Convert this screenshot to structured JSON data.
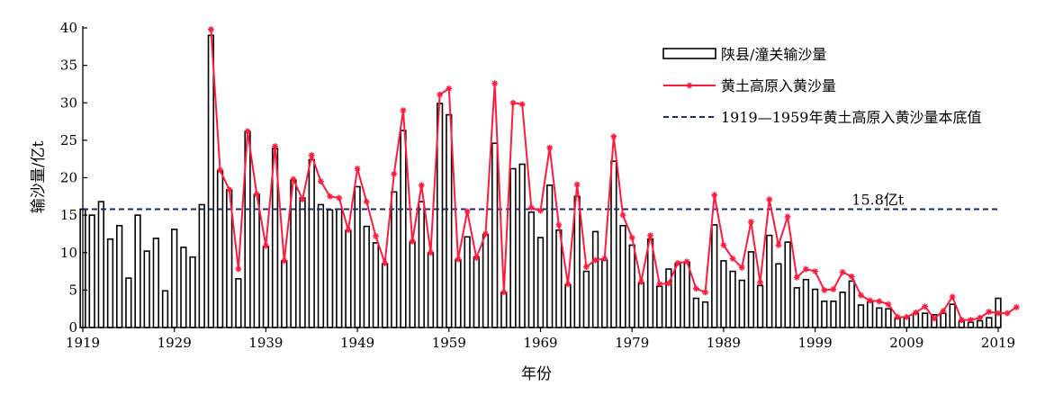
{
  "chart_data": {
    "type": "bar",
    "xlabel": "年份",
    "ylabel": "输沙量/亿t",
    "xlim": [
      1919,
      2019
    ],
    "ylim": [
      0,
      40
    ],
    "xticks": [
      1919,
      1929,
      1939,
      1949,
      1959,
      1969,
      1979,
      1989,
      1999,
      2009,
      2019
    ],
    "yticks": [
      0,
      5,
      10,
      15,
      20,
      25,
      30,
      35,
      40
    ],
    "grid": false,
    "legend_position": "top-right",
    "series": [
      {
        "name": "陕县/潼关输沙量",
        "kind": "bar",
        "color": "#000000",
        "start_year": 1919,
        "values": [
          15.8,
          15.0,
          16.8,
          11.8,
          13.6,
          6.6,
          15.0,
          10.2,
          11.9,
          4.9,
          13.1,
          10.7,
          9.4,
          16.4,
          39.0,
          21.0,
          18.4,
          6.5,
          26.2,
          17.8,
          10.8,
          23.9,
          8.9,
          19.7,
          17.3,
          22.4,
          16.4,
          15.7,
          15.8,
          13.0,
          18.8,
          13.5,
          11.3,
          8.5,
          18.1,
          26.3,
          11.5,
          16.8,
          10.0,
          29.9,
          28.4,
          9.1,
          12.1,
          9.4,
          12.4,
          24.6,
          4.7,
          21.2,
          21.8,
          15.4,
          12.0,
          19.0,
          13.0,
          5.7,
          17.5,
          7.5,
          12.8,
          9.0,
          22.2,
          13.6,
          11.0,
          5.9,
          11.8,
          5.5,
          7.8,
          8.6,
          8.7,
          3.9,
          3.4,
          13.7,
          8.9,
          7.5,
          6.3,
          10.1,
          5.6,
          12.3,
          8.5,
          11.4,
          5.3,
          6.4,
          5.1,
          3.5,
          3.5,
          4.7,
          6.2,
          3.0,
          3.4,
          2.6,
          2.5,
          1.2,
          1.3,
          1.9,
          1.9,
          1.7,
          1.9,
          3.1,
          0.8,
          0.7,
          0.9,
          1.3,
          3.9
        ]
      },
      {
        "name": "黄土高原入黄沙量",
        "kind": "line",
        "color": "#ff1a3c",
        "start_year": 1933,
        "values": [
          39.8,
          21.0,
          18.4,
          7.8,
          26.2,
          17.8,
          10.9,
          24.2,
          8.9,
          19.8,
          17.1,
          23.0,
          19.5,
          17.5,
          17.3,
          13.0,
          21.2,
          16.8,
          12.2,
          8.6,
          20.5,
          29.0,
          11.5,
          19.0,
          10.0,
          31.1,
          31.9,
          9.1,
          15.5,
          9.3,
          12.5,
          32.6,
          4.7,
          30.0,
          29.8,
          16.0,
          15.6,
          24.0,
          13.7,
          5.8,
          19.1,
          8.1,
          9.0,
          9.2,
          25.5,
          15.0,
          12.0,
          6.1,
          12.3,
          5.8,
          5.9,
          8.6,
          8.8,
          5.2,
          4.7,
          17.7,
          11.0,
          9.2,
          8.0,
          14.1,
          6.0,
          17.1,
          11.0,
          14.8,
          6.7,
          7.8,
          7.5,
          5.0,
          5.1,
          7.4,
          6.8,
          4.3,
          3.6,
          3.5,
          3.1,
          1.4,
          1.4,
          2.0,
          2.8,
          1.2,
          2.2,
          4.1,
          1.0,
          1.0,
          1.3,
          2.1,
          1.9,
          1.9,
          2.7
        ]
      },
      {
        "name": "1919—1959年黄土高原入黄沙量本底值",
        "kind": "reference-line",
        "color": "#1a2a6c",
        "value": 15.8
      }
    ],
    "annotations": [
      {
        "text": "15.8亿t",
        "x": 2003,
        "y": 15.8
      }
    ]
  }
}
